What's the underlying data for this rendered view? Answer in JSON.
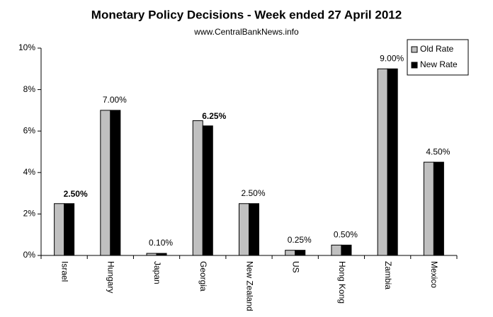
{
  "chart_data": {
    "type": "bar",
    "title": "Monetary Policy Decisions - Week ended 27 April 2012",
    "subtitle": "www.CentralBankNews.info",
    "categories": [
      "Israel",
      "Hungary",
      "Japan",
      "Georgia",
      "New Zealand",
      "US",
      "Hong Kong",
      "Zambia",
      "Mexico"
    ],
    "series": [
      {
        "name": "Old Rate",
        "color": "#c0c0c0",
        "values": [
          2.5,
          7.0,
          0.1,
          6.5,
          2.5,
          0.25,
          0.5,
          9.0,
          4.5
        ]
      },
      {
        "name": "New Rate",
        "color": "#000000",
        "values": [
          2.5,
          7.0,
          0.1,
          6.25,
          2.5,
          0.25,
          0.5,
          9.0,
          4.5
        ],
        "value_labels": [
          "2.50%",
          "7.00%",
          "0.10%",
          "6.25%",
          "2.50%",
          "0.25%",
          "0.50%",
          "9.00%",
          "4.50%"
        ],
        "value_label_bold": [
          true,
          false,
          false,
          true,
          false,
          false,
          false,
          false,
          false
        ]
      }
    ],
    "ylim": [
      0,
      10
    ],
    "yticks": [
      {
        "value": 0,
        "label": "0%"
      },
      {
        "value": 2,
        "label": "2%"
      },
      {
        "value": 4,
        "label": "4%"
      },
      {
        "value": 6,
        "label": "6%"
      },
      {
        "value": 8,
        "label": "8%"
      },
      {
        "value": 10,
        "label": "10%"
      }
    ],
    "legend": "top-right"
  }
}
